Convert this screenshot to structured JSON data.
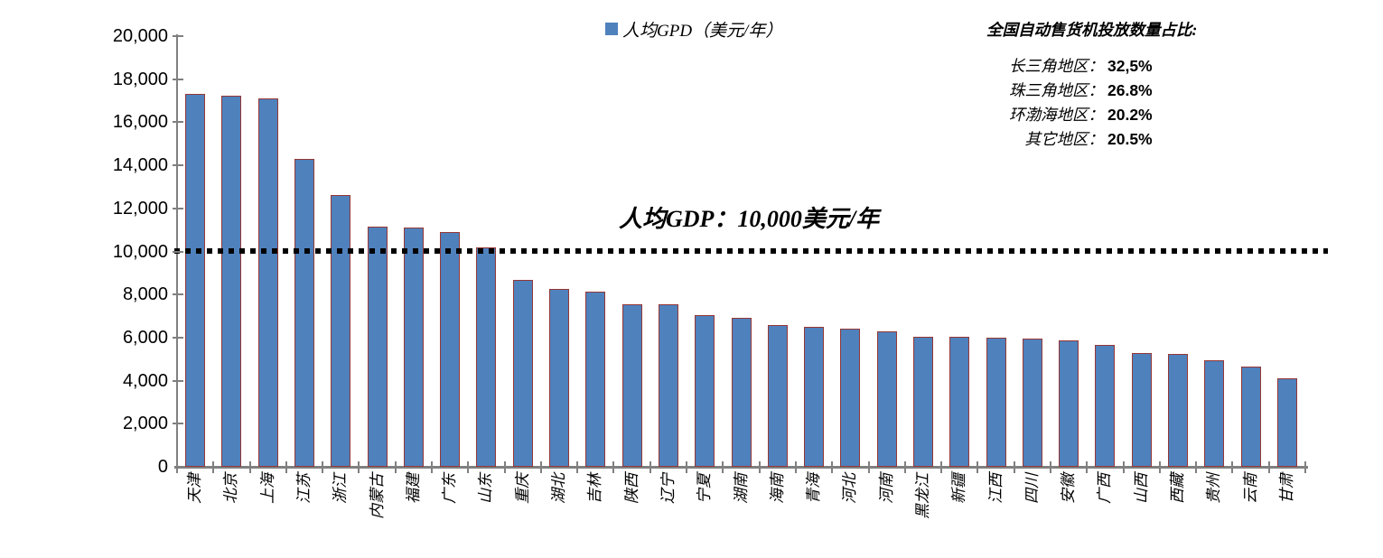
{
  "chart_data": {
    "type": "bar",
    "title": "",
    "xlabel": "",
    "ylabel": "",
    "legend_label": "人均GPD（美元/年）",
    "legend_position": "top-center",
    "grid": false,
    "bar_color": "#4F81BD",
    "bar_border_color": "#953735",
    "axis_color": "#808080",
    "ylim": [
      0,
      20000
    ],
    "ytick_step": 2000,
    "y_tick_labels": [
      "0",
      "2,000",
      "4,000",
      "6,000",
      "8,000",
      "10,000",
      "12,000",
      "14,000",
      "16,000",
      "18,000",
      "20,000"
    ],
    "categories": [
      "天津",
      "北京",
      "上海",
      "江苏",
      "浙江",
      "内蒙古",
      "福建",
      "广东",
      "山东",
      "重庆",
      "湖北",
      "吉林",
      "陕西",
      "辽宁",
      "宁夏",
      "湖南",
      "海南",
      "青海",
      "河北",
      "河南",
      "黑龙江",
      "新疆",
      "江西",
      "四川",
      "安徽",
      "广西",
      "山西",
      "西藏",
      "贵州",
      "云南",
      "甘肃"
    ],
    "values": [
      17300,
      17250,
      17100,
      14300,
      12600,
      11150,
      11100,
      10900,
      10200,
      8700,
      8250,
      8150,
      7550,
      7550,
      7050,
      6900,
      6600,
      6500,
      6400,
      6300,
      6050,
      6050,
      6000,
      5950,
      5850,
      5650,
      5300,
      5250,
      4950,
      4650,
      4100
    ],
    "reference_line": {
      "value": 10000,
      "label": "人均GDP：10,000美元/年",
      "style": "dotted",
      "color": "#000000"
    }
  },
  "side_note": {
    "title": "全国自动售货机投放数量占比:",
    "items": [
      {
        "label": "长三角地区：",
        "value": "32,5%"
      },
      {
        "label": "珠三角地区：",
        "value": "26.8%"
      },
      {
        "label": "环渤海地区：",
        "value": "20.2%"
      },
      {
        "label": "其它地区：",
        "value": "20.5%"
      }
    ]
  }
}
